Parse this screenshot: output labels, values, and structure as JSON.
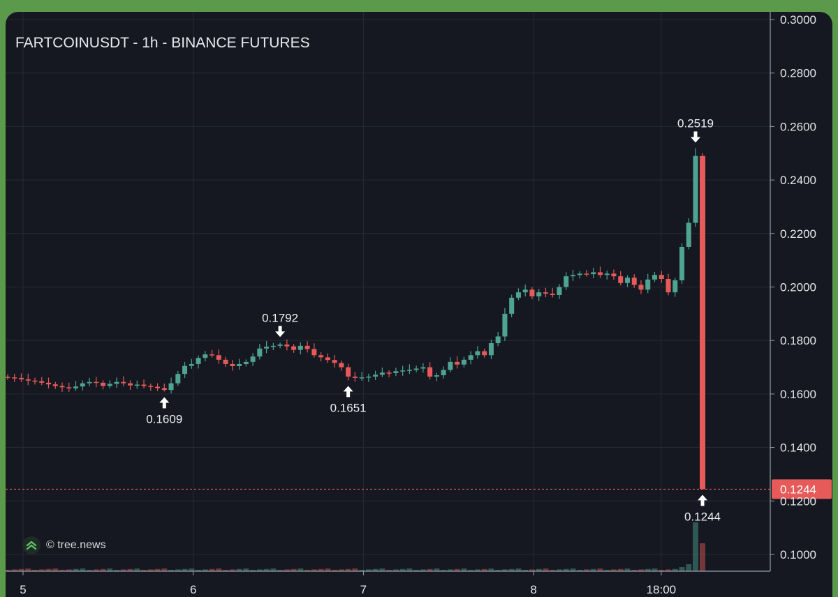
{
  "chart_data": {
    "type": "candlestick",
    "title": "FARTCOINUSDT - 1h - BINANCE FUTURES",
    "ylim": [
      0.09,
      0.3
    ],
    "y_ticks": [
      "0.3000",
      "0.2800",
      "0.2600",
      "0.2400",
      "0.2200",
      "0.2000",
      "0.1800",
      "0.1600",
      "0.1400",
      "0.1200",
      "0.1000"
    ],
    "x_ticks": [
      {
        "label": "5",
        "day": 5
      },
      {
        "label": "6",
        "day": 6
      },
      {
        "label": "7",
        "day": 7
      },
      {
        "label": "8",
        "day": 8
      },
      {
        "label": "18:00",
        "day": 8.75
      }
    ],
    "x_range_days": [
      4.99,
      9.6
    ],
    "grid": true,
    "up_color": "#4fa393",
    "down_color": "#e65a5a",
    "closes": [
      0.1662,
      0.166,
      0.1655,
      0.165,
      0.1648,
      0.1642,
      0.1636,
      0.163,
      0.1625,
      0.1621,
      0.1628,
      0.164,
      0.1645,
      0.1642,
      0.163,
      0.1638,
      0.1645,
      0.164,
      0.1632,
      0.1635,
      0.163,
      0.1627,
      0.1622,
      0.1615,
      0.164,
      0.1675,
      0.1705,
      0.1712,
      0.1735,
      0.1748,
      0.1745,
      0.1728,
      0.1712,
      0.1704,
      0.1712,
      0.172,
      0.174,
      0.177,
      0.1777,
      0.178,
      0.1785,
      0.1778,
      0.1765,
      0.178,
      0.1768,
      0.1745,
      0.1737,
      0.1727,
      0.1716,
      0.17,
      0.1665,
      0.166,
      0.1662,
      0.1665,
      0.1672,
      0.168,
      0.1678,
      0.1685,
      0.1688,
      0.169,
      0.1695,
      0.17,
      0.1665,
      0.167,
      0.169,
      0.172,
      0.171,
      0.1728,
      0.1745,
      0.176,
      0.1745,
      0.179,
      0.1815,
      0.19,
      0.196,
      0.198,
      0.199,
      0.1965,
      0.198,
      0.1975,
      0.197,
      0.2,
      0.204,
      0.2045,
      0.205,
      0.2048,
      0.2055,
      0.2045,
      0.205,
      0.204,
      0.2015,
      0.2035,
      0.2008,
      0.199,
      0.2028,
      0.2045,
      0.203,
      0.198,
      0.2025,
      0.215,
      0.224,
      0.249,
      0.1244
    ],
    "annotations": [
      {
        "label": "0.1609",
        "index": 23,
        "value": 0.1609,
        "kind": "low"
      },
      {
        "label": "0.1792",
        "index": 40,
        "value": 0.1792,
        "kind": "high"
      },
      {
        "label": "0.1651",
        "index": 50,
        "value": 0.1651,
        "kind": "low"
      },
      {
        "label": "0.2519",
        "index": 101,
        "value": 0.2519,
        "kind": "high"
      },
      {
        "label": "0.1244",
        "index": 102,
        "value": 0.1244,
        "kind": "low"
      }
    ],
    "last_price": {
      "label": "0.1244",
      "value": 0.1244,
      "color": "#e65a5a"
    }
  },
  "watermark": {
    "text": "© tree.news"
  }
}
